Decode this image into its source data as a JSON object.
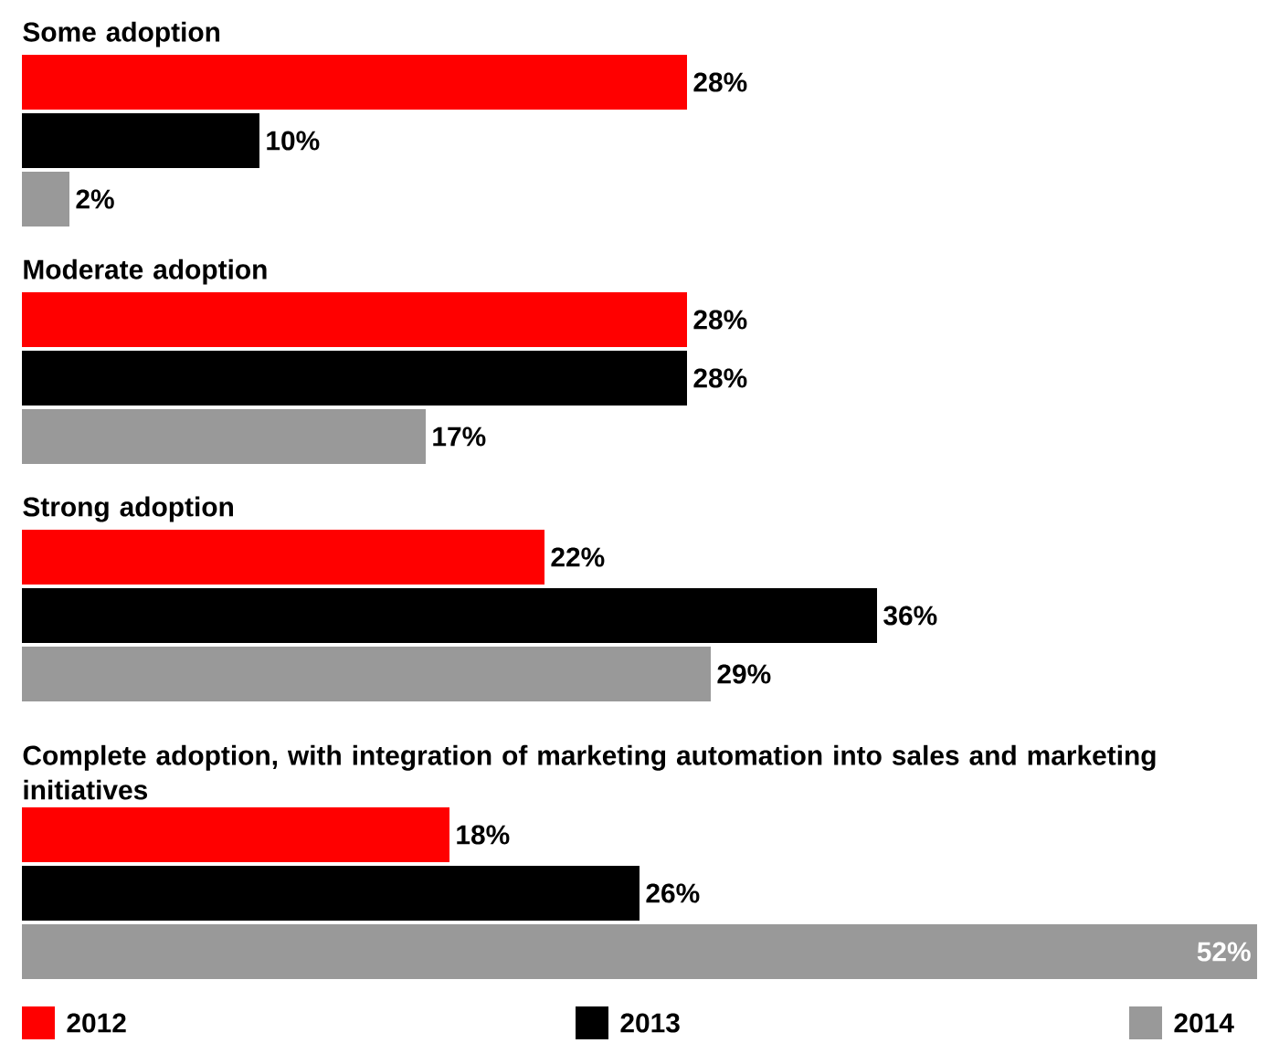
{
  "chart_data": {
    "type": "bar",
    "orientation": "horizontal",
    "legend": "bottom",
    "categories": [
      "Some adoption",
      "Moderate adoption",
      "Strong adoption",
      "Complete adoption, with integration of marketing automation into sales and marketing initiatives"
    ],
    "series": [
      {
        "name": "2012",
        "color": "#ff0000",
        "values": [
          28,
          28,
          22,
          18
        ],
        "value_labels": [
          "28%",
          "28%",
          "22%",
          "18%"
        ]
      },
      {
        "name": "2013",
        "color": "#000000",
        "values": [
          10,
          28,
          36,
          26
        ],
        "value_labels": [
          "10%",
          "28%",
          "36%",
          "26%"
        ]
      },
      {
        "name": "2014",
        "color": "#999999",
        "values": [
          2,
          17,
          29,
          52
        ],
        "value_labels": [
          "2%",
          "17%",
          "29%",
          "52%"
        ]
      }
    ]
  }
}
